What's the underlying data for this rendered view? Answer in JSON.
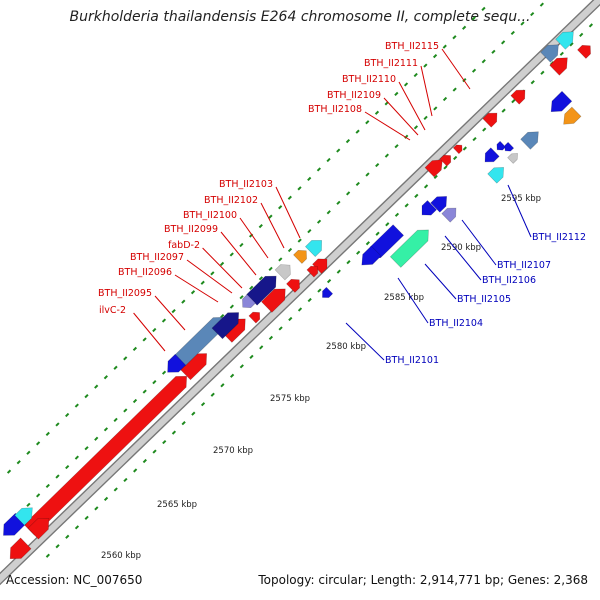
{
  "title": "Burkholderia thailandensis E264 chromosome II, complete sequ...",
  "footer": {
    "accession": "Accession: NC_007650",
    "summary": "Topology: circular; Length: 2,914,771 bp; Genes: 2,368"
  },
  "colors": {
    "backbone_fill": "#cfcfcf",
    "backbone_stroke": "#777777",
    "gene_red": "#ee1111",
    "gene_blue": "#1111dd",
    "gene_navy": "#16168a",
    "gene_steel": "#5a87b8",
    "gene_cyan": "#33e5ee",
    "gene_gray": "#c8c8c8",
    "gene_orange": "#f39418",
    "gene_lavender": "#8a86d8",
    "gene_green": "#35f0a6",
    "dot_green": "#1e8a1e",
    "label_red": "#d40000",
    "label_blue": "#0000bb"
  },
  "scale_labels": [
    "2560 kbp",
    "2565 kbp",
    "2570 kbp",
    "2575 kbp",
    "2580 kbp",
    "2585 kbp",
    "2590 kbp",
    "2595 kbp"
  ],
  "labels_red": [
    "BTH_II2115",
    "BTH_II2111",
    "BTH_II2110",
    "BTH_II2109",
    "BTH_II2108",
    "BTH_II2103",
    "BTH_II2102",
    "BTH_II2100",
    "BTH_II2099",
    "fabD-2",
    "BTH_II2097",
    "BTH_II2096",
    "BTH_II2095",
    "ilvC-2"
  ],
  "labels_blue": [
    "BTH_II2112",
    "BTH_II2107",
    "BTH_II2106",
    "BTH_II2105",
    "BTH_II2104",
    "BTH_II2101"
  ]
}
